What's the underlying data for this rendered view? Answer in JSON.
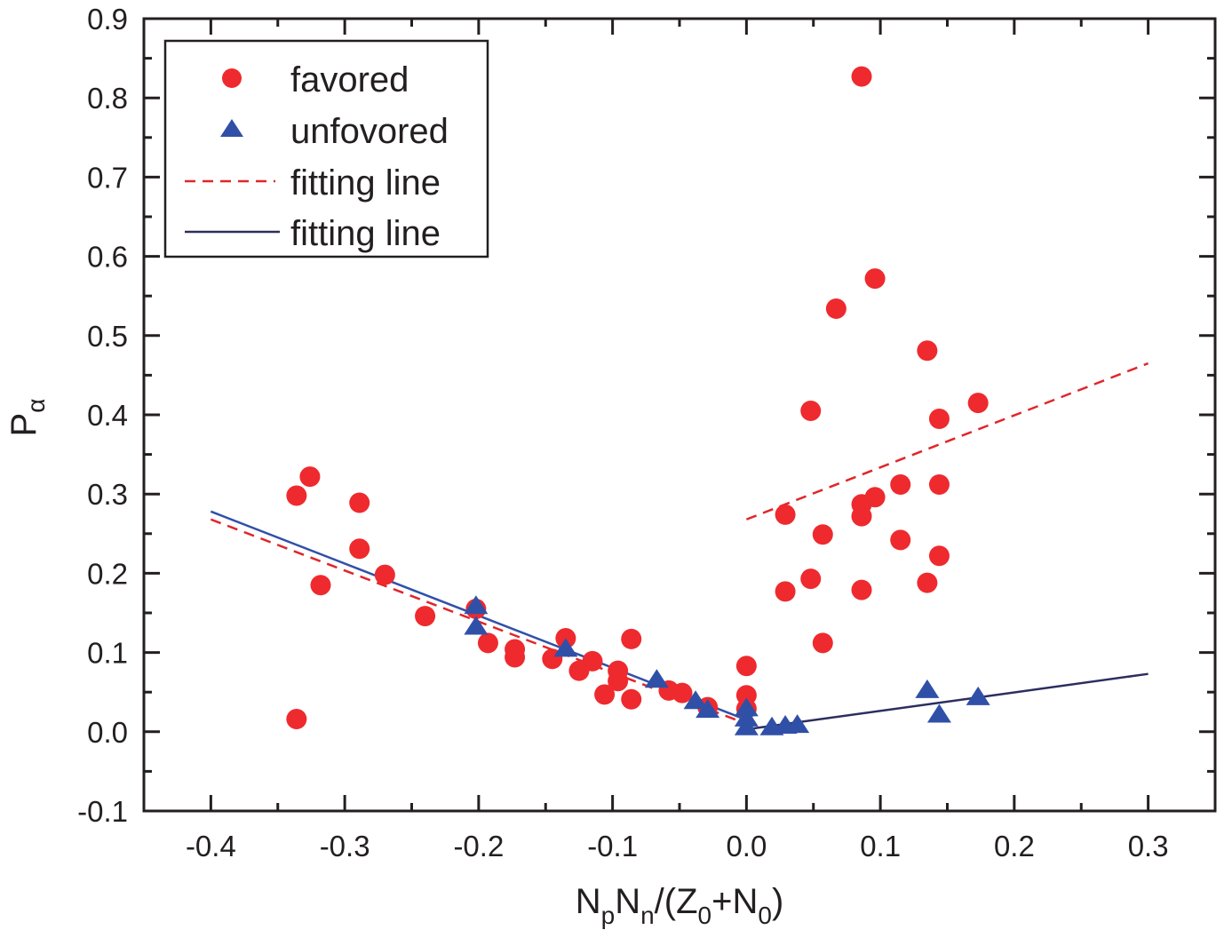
{
  "chart_data": {
    "type": "scatter",
    "title": "",
    "xlabel": {
      "parts": [
        {
          "text": "N",
          "sub": "p"
        },
        {
          "text": "N",
          "sub": "n"
        },
        {
          "text": "/(Z",
          "sub": "0"
        },
        {
          "text": "+N",
          "sub": "0"
        },
        {
          "text": ")",
          "sub": ""
        }
      ],
      "plain": "NpNn/(Z0+N0)"
    },
    "ylabel": {
      "text": "P",
      "sub": "α",
      "plain": "Pα"
    },
    "xlim": [
      -0.45,
      0.35
    ],
    "ylim": [
      -0.1,
      0.9
    ],
    "x_ticks": [
      -0.4,
      -0.3,
      -0.2,
      -0.1,
      0.0,
      0.1,
      0.2,
      0.3
    ],
    "x_tick_labels": [
      "-0.4",
      "-0.3",
      "-0.2",
      "-0.1",
      "0.0",
      "0.1",
      "0.2",
      "0.3"
    ],
    "y_ticks": [
      -0.1,
      0.0,
      0.1,
      0.2,
      0.3,
      0.4,
      0.5,
      0.6,
      0.7,
      0.8,
      0.9
    ],
    "y_tick_labels": [
      "-0.1",
      "0.0",
      "0.1",
      "0.2",
      "0.3",
      "0.4",
      "0.5",
      "0.6",
      "0.7",
      "0.8",
      "0.9"
    ],
    "x_minor_step": 0.05,
    "y_minor_step": 0.05,
    "grid": false,
    "legend_position": "top-left",
    "colors": {
      "favored": "#ee2a2e",
      "unfavored": "#3050a8",
      "fit_favored": "#e0262a",
      "fit_unfavored_left": "#3050a8",
      "fit_unfavored_right": "#2b2e5e",
      "axis": "#231f20"
    },
    "series": [
      {
        "name": "favored",
        "legend_label": "favored",
        "marker": "circle",
        "points": [
          [
            -0.336,
            0.298
          ],
          [
            -0.326,
            0.322
          ],
          [
            -0.318,
            0.185
          ],
          [
            -0.289,
            0.289
          ],
          [
            -0.289,
            0.231
          ],
          [
            -0.27,
            0.198
          ],
          [
            -0.24,
            0.146
          ],
          [
            -0.202,
            0.155
          ],
          [
            -0.193,
            0.112
          ],
          [
            -0.173,
            0.104
          ],
          [
            -0.173,
            0.094
          ],
          [
            -0.145,
            0.092
          ],
          [
            -0.135,
            0.118
          ],
          [
            -0.125,
            0.077
          ],
          [
            -0.115,
            0.089
          ],
          [
            -0.106,
            0.047
          ],
          [
            -0.096,
            0.077
          ],
          [
            -0.096,
            0.064
          ],
          [
            -0.086,
            0.117
          ],
          [
            -0.086,
            0.041
          ],
          [
            -0.058,
            0.052
          ],
          [
            -0.048,
            0.049
          ],
          [
            -0.029,
            0.031
          ],
          [
            0.0,
            0.083
          ],
          [
            0.0,
            0.046
          ],
          [
            0.0,
            0.029
          ],
          [
            -0.336,
            0.016
          ],
          [
            0.086,
            0.827
          ],
          [
            0.096,
            0.572
          ],
          [
            0.067,
            0.534
          ],
          [
            0.135,
            0.481
          ],
          [
            0.048,
            0.405
          ],
          [
            0.173,
            0.415
          ],
          [
            0.144,
            0.395
          ],
          [
            0.115,
            0.312
          ],
          [
            0.144,
            0.312
          ],
          [
            0.096,
            0.296
          ],
          [
            0.086,
            0.287
          ],
          [
            0.086,
            0.272
          ],
          [
            0.029,
            0.274
          ],
          [
            0.057,
            0.249
          ],
          [
            0.115,
            0.242
          ],
          [
            0.144,
            0.222
          ],
          [
            0.048,
            0.193
          ],
          [
            0.135,
            0.188
          ],
          [
            0.029,
            0.177
          ],
          [
            0.086,
            0.179
          ],
          [
            0.057,
            0.112
          ]
        ]
      },
      {
        "name": "unfavored",
        "legend_label": "unfovored",
        "marker": "triangle",
        "points": [
          [
            -0.202,
            0.158
          ],
          [
            -0.202,
            0.132
          ],
          [
            -0.135,
            0.104
          ],
          [
            -0.067,
            0.065
          ],
          [
            -0.038,
            0.038
          ],
          [
            -0.029,
            0.027
          ],
          [
            0.0,
            0.029
          ],
          [
            0.0,
            0.016
          ],
          [
            0.0,
            0.005
          ],
          [
            0.019,
            0.005
          ],
          [
            0.029,
            0.007
          ],
          [
            0.038,
            0.008
          ],
          [
            0.135,
            0.052
          ],
          [
            0.144,
            0.021
          ],
          [
            0.173,
            0.043
          ]
        ]
      }
    ],
    "fit_lines": [
      {
        "name": "fitting line (favored, left)",
        "style": "dashed",
        "color_key": "fit_favored",
        "from": [
          -0.4,
          0.268
        ],
        "to": [
          0.0,
          0.01
        ]
      },
      {
        "name": "fitting line (favored, right)",
        "style": "dashed",
        "color_key": "fit_favored",
        "from": [
          0.0,
          0.268
        ],
        "to": [
          0.3,
          0.465
        ]
      },
      {
        "name": "fitting line (unfavored, left)",
        "style": "solid",
        "color_key": "fit_unfavored_left",
        "from": [
          -0.4,
          0.278
        ],
        "to": [
          0.0,
          0.015
        ]
      },
      {
        "name": "fitting line (unfavored, right)",
        "style": "solid",
        "color_key": "fit_unfavored_right",
        "from": [
          0.0,
          0.003
        ],
        "to": [
          0.3,
          0.073
        ]
      }
    ],
    "legend": [
      {
        "label": "favored",
        "symbol": "circle",
        "color_key": "favored"
      },
      {
        "label": "unfovored",
        "symbol": "triangle",
        "color_key": "unfavored"
      },
      {
        "label": "fitting line",
        "symbol": "dashed-line",
        "color_key": "fit_favored"
      },
      {
        "label": "fitting line",
        "symbol": "solid-line",
        "color_key": "fit_unfavored_right"
      }
    ]
  }
}
